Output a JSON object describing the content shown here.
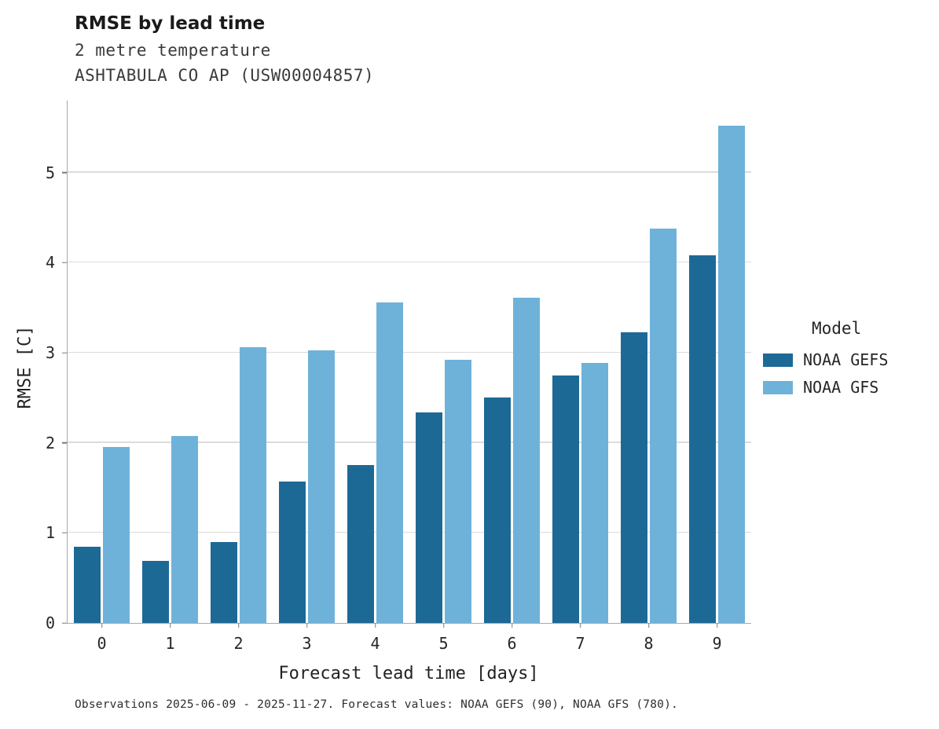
{
  "chart_data": {
    "type": "bar",
    "title": "RMSE by lead time",
    "subtitle": "2 metre temperature",
    "subtitle2": "ASHTABULA CO AP (USW00004857)",
    "xlabel": "Forecast lead time [days]",
    "ylabel": "RMSE [C]",
    "ylim": [
      0,
      5.8
    ],
    "yticks": [
      0,
      1,
      2,
      3,
      4,
      5
    ],
    "categories": [
      "0",
      "1",
      "2",
      "3",
      "4",
      "5",
      "6",
      "7",
      "8",
      "9"
    ],
    "series": [
      {
        "name": "NOAA GEFS",
        "color": "#1d6996",
        "values": [
          0.85,
          0.69,
          0.9,
          1.57,
          1.75,
          2.34,
          2.5,
          2.75,
          3.23,
          4.08
        ]
      },
      {
        "name": "NOAA GFS",
        "color": "#6fb2d9",
        "values": [
          1.95,
          2.08,
          3.06,
          3.03,
          3.56,
          2.92,
          3.61,
          2.89,
          4.38,
          5.52
        ]
      }
    ],
    "legend_title": "Model",
    "legend_position": "right",
    "grid": true,
    "caption": "Observations 2025-06-09 - 2025-11-27. Forecast values: NOAA GEFS (90), NOAA GFS (780)."
  }
}
